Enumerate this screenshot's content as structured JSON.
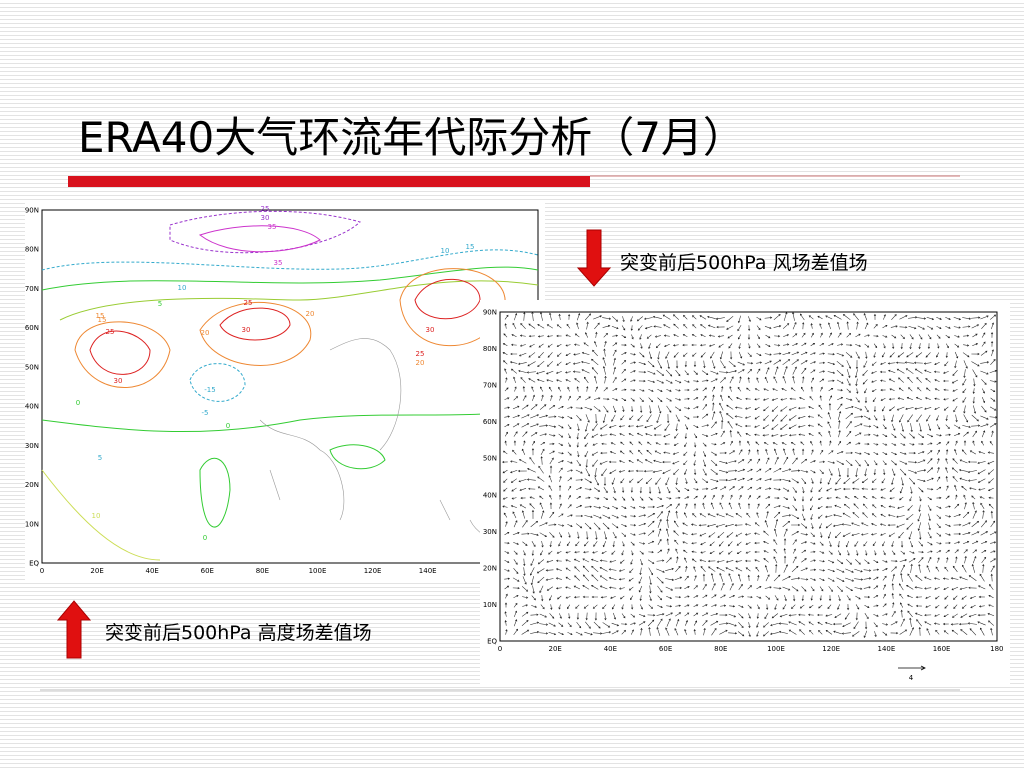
{
  "title": "ERA40大气环流年代际分析（7月）",
  "left_map": {
    "caption": "突变前后500hPa 高度场差值场",
    "y_labels": [
      "90N",
      "80N",
      "70N",
      "60N",
      "50N",
      "40N",
      "30N",
      "20N",
      "10N",
      "EQ"
    ],
    "x_labels": [
      "0",
      "20E",
      "40E",
      "60E",
      "80E",
      "100E",
      "120E",
      "140E"
    ],
    "contour_labels": [
      "25",
      "30",
      "35",
      "15",
      "10",
      "25",
      "30",
      "35",
      "20",
      "25",
      "30",
      "20",
      "25",
      "30",
      "15",
      "10",
      "5",
      "0",
      "-5",
      "-15",
      "0",
      "5",
      "10",
      "0",
      "15",
      "20"
    ]
  },
  "right_map": {
    "caption": "突变前后500hPa 风场差值场",
    "y_labels": [
      "90N",
      "80N",
      "70N",
      "60N",
      "50N",
      "40N",
      "30N",
      "20N",
      "10N",
      "EQ"
    ],
    "x_labels": [
      "0",
      "20E",
      "40E",
      "60E",
      "80E",
      "100E",
      "120E",
      "140E",
      "160E",
      "180"
    ],
    "scale_label": "4"
  }
}
